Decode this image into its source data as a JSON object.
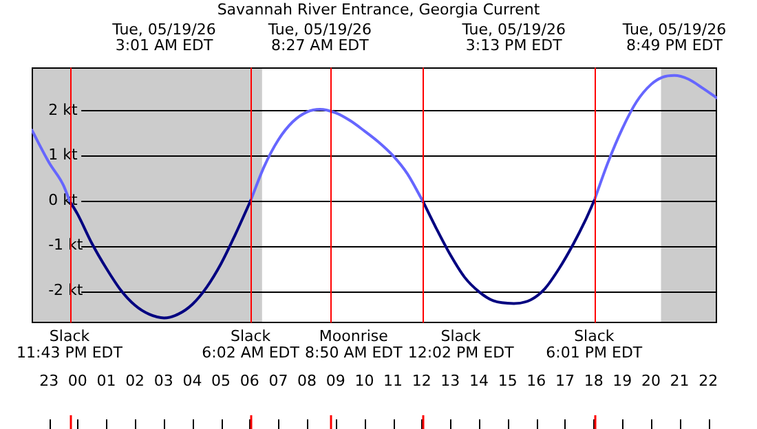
{
  "chart_data": {
    "type": "line",
    "title": "Savannah River Entrance, Georgia Current",
    "xlim": [
      "--05-18T22:24",
      "--05-19T22:18"
    ],
    "xticks": [
      {
        "value": "--05-18T23:00",
        "label": "23"
      },
      {
        "value": "--05-19T00:00",
        "label": "00"
      },
      {
        "value": "--05-19T01:00",
        "label": "01"
      },
      {
        "value": "--05-19T02:00",
        "label": "02"
      },
      {
        "value": "--05-19T03:00",
        "label": "03"
      },
      {
        "value": "--05-19T04:00",
        "label": "04"
      },
      {
        "value": "--05-19T05:00",
        "label": "05"
      },
      {
        "value": "--05-19T06:00",
        "label": "06"
      },
      {
        "value": "--05-19T07:00",
        "label": "07"
      },
      {
        "value": "--05-19T08:00",
        "label": "08"
      },
      {
        "value": "--05-19T09:00",
        "label": "09"
      },
      {
        "value": "--05-19T10:00",
        "label": "10"
      },
      {
        "value": "--05-19T11:00",
        "label": "11"
      },
      {
        "value": "--05-19T12:00",
        "label": "12"
      },
      {
        "value": "--05-19T13:00",
        "label": "13"
      },
      {
        "value": "--05-19T14:00",
        "label": "14"
      },
      {
        "value": "--05-19T15:00",
        "label": "15"
      },
      {
        "value": "--05-19T16:00",
        "label": "16"
      },
      {
        "value": "--05-19T17:00",
        "label": "17"
      },
      {
        "value": "--05-19T18:00",
        "label": "18"
      },
      {
        "value": "--05-19T19:00",
        "label": "19"
      },
      {
        "value": "--05-19T20:00",
        "label": "20"
      },
      {
        "value": "--05-19T21:00",
        "label": "21"
      },
      {
        "value": "--05-19T22:00",
        "label": "22"
      }
    ],
    "x2lim": [
      "--05-18T22:24",
      "--05-19T22:18"
    ],
    "x2ticks": [
      {
        "value": "--05-19T03:01",
        "label": "Tue, 05/19/26\n3:01 AM EDT"
      },
      {
        "value": "--05-19T08:27",
        "label": "Tue, 05/19/26\n8:27 AM EDT"
      },
      {
        "value": "--05-19T15:13",
        "label": "Tue, 05/19/26\n3:13 PM EDT"
      },
      {
        "value": "--05-19T20:49",
        "label": "Tue, 05/19/26\n8:49 PM EDT"
      }
    ],
    "ylim": [
      -2.71,
      2.95
    ],
    "yticks": [
      {
        "value": -2,
        "label": "-2 kt"
      },
      {
        "value": -1,
        "label": "-1 kt"
      },
      {
        "value": 0,
        "label": "0 kt"
      },
      {
        "value": 1,
        "label": "1 kt"
      },
      {
        "value": 2,
        "label": "2 kt"
      }
    ],
    "grid": "y",
    "legend": false,
    "marker": "none",
    "line_style": "solid",
    "series": [
      {
        "color": "#6666ff",
        "x": [
          "--05-18T22:24",
          "--05-18T23:00",
          "--05-18T23:30",
          "--05-18T23:43"
        ],
        "values": [
          1.57,
          0.85,
          0.35,
          0
        ]
      },
      {
        "color": "#000080",
        "x": [
          "--05-18T23:43",
          "--05-19T00:00",
          "--05-19T00:30",
          "--05-19T01:00",
          "--05-19T01:30",
          "--05-19T02:00",
          "--05-19T02:30",
          "--05-19T03:01",
          "--05-19T03:30",
          "--05-19T04:00",
          "--05-19T04:30",
          "--05-19T05:00",
          "--05-19T05:30",
          "--05-19T06:02"
        ],
        "values": [
          0,
          -0.3,
          -0.95,
          -1.5,
          -1.98,
          -2.32,
          -2.52,
          -2.6,
          -2.52,
          -2.3,
          -1.92,
          -1.4,
          -0.75,
          0
        ]
      },
      {
        "color": "#6666ff",
        "x": [
          "--05-19T06:02",
          "--05-19T06:30",
          "--05-19T07:00",
          "--05-19T07:30",
          "--05-19T08:00",
          "--05-19T08:27",
          "--05-19T09:00",
          "--05-19T09:30",
          "--05-19T10:00",
          "--05-19T10:30",
          "--05-19T11:00",
          "--05-19T11:30",
          "--05-19T12:02"
        ],
        "values": [
          0,
          0.75,
          1.35,
          1.75,
          1.97,
          2.03,
          1.95,
          1.78,
          1.55,
          1.3,
          1.0,
          0.6,
          0
        ]
      },
      {
        "color": "#000080",
        "x": [
          "--05-19T12:02",
          "--05-19T12:30",
          "--05-19T13:00",
          "--05-19T13:30",
          "--05-19T14:00",
          "--05-19T14:30",
          "--05-19T15:13",
          "--05-19T15:48",
          "--05-19T16:18",
          "--05-19T16:48",
          "--05-19T17:18",
          "--05-19T17:42",
          "--05-19T18:01"
        ],
        "values": [
          0,
          -0.6,
          -1.2,
          -1.7,
          -2.02,
          -2.22,
          -2.28,
          -2.2,
          -1.95,
          -1.5,
          -0.95,
          -0.45,
          0
        ]
      },
      {
        "color": "#6666ff",
        "x": [
          "--05-19T18:01",
          "--05-19T18:30",
          "--05-19T19:00",
          "--05-19T19:30",
          "--05-19T20:00",
          "--05-19T20:24",
          "--05-19T20:49",
          "--05-19T21:18",
          "--05-19T21:48",
          "--05-19T22:18"
        ],
        "values": [
          0,
          0.85,
          1.6,
          2.2,
          2.58,
          2.74,
          2.78,
          2.7,
          2.5,
          2.28
        ]
      }
    ],
    "bands": [
      {
        "axis": "x",
        "from": "--05-18T22:24",
        "to": "--05-19T06:26",
        "color": "#cccccc"
      },
      {
        "axis": "x",
        "from": "--05-19T20:21",
        "to": "--05-19T22:18",
        "color": "#cccccc"
      }
    ],
    "ref_lines": [
      {
        "axis": "x",
        "value": "--05-18T23:43",
        "label": "Slack\n11:43 PM EDT",
        "color": "#ff0000"
      },
      {
        "axis": "x",
        "value": "--05-19T06:02",
        "label": "Slack\n6:02 AM EDT",
        "color": "#ff0000"
      },
      {
        "axis": "x",
        "value": "--05-19T08:50",
        "label": "Moonrise\n8:50 AM EDT",
        "color": "#ff0000"
      },
      {
        "axis": "x",
        "value": "--05-19T12:02",
        "label": "Slack\n12:02 PM EDT",
        "color": "#ff0000"
      },
      {
        "axis": "x",
        "value": "--05-19T18:01",
        "label": "Slack\n6:01 PM EDT",
        "color": "#ff0000"
      }
    ]
  }
}
